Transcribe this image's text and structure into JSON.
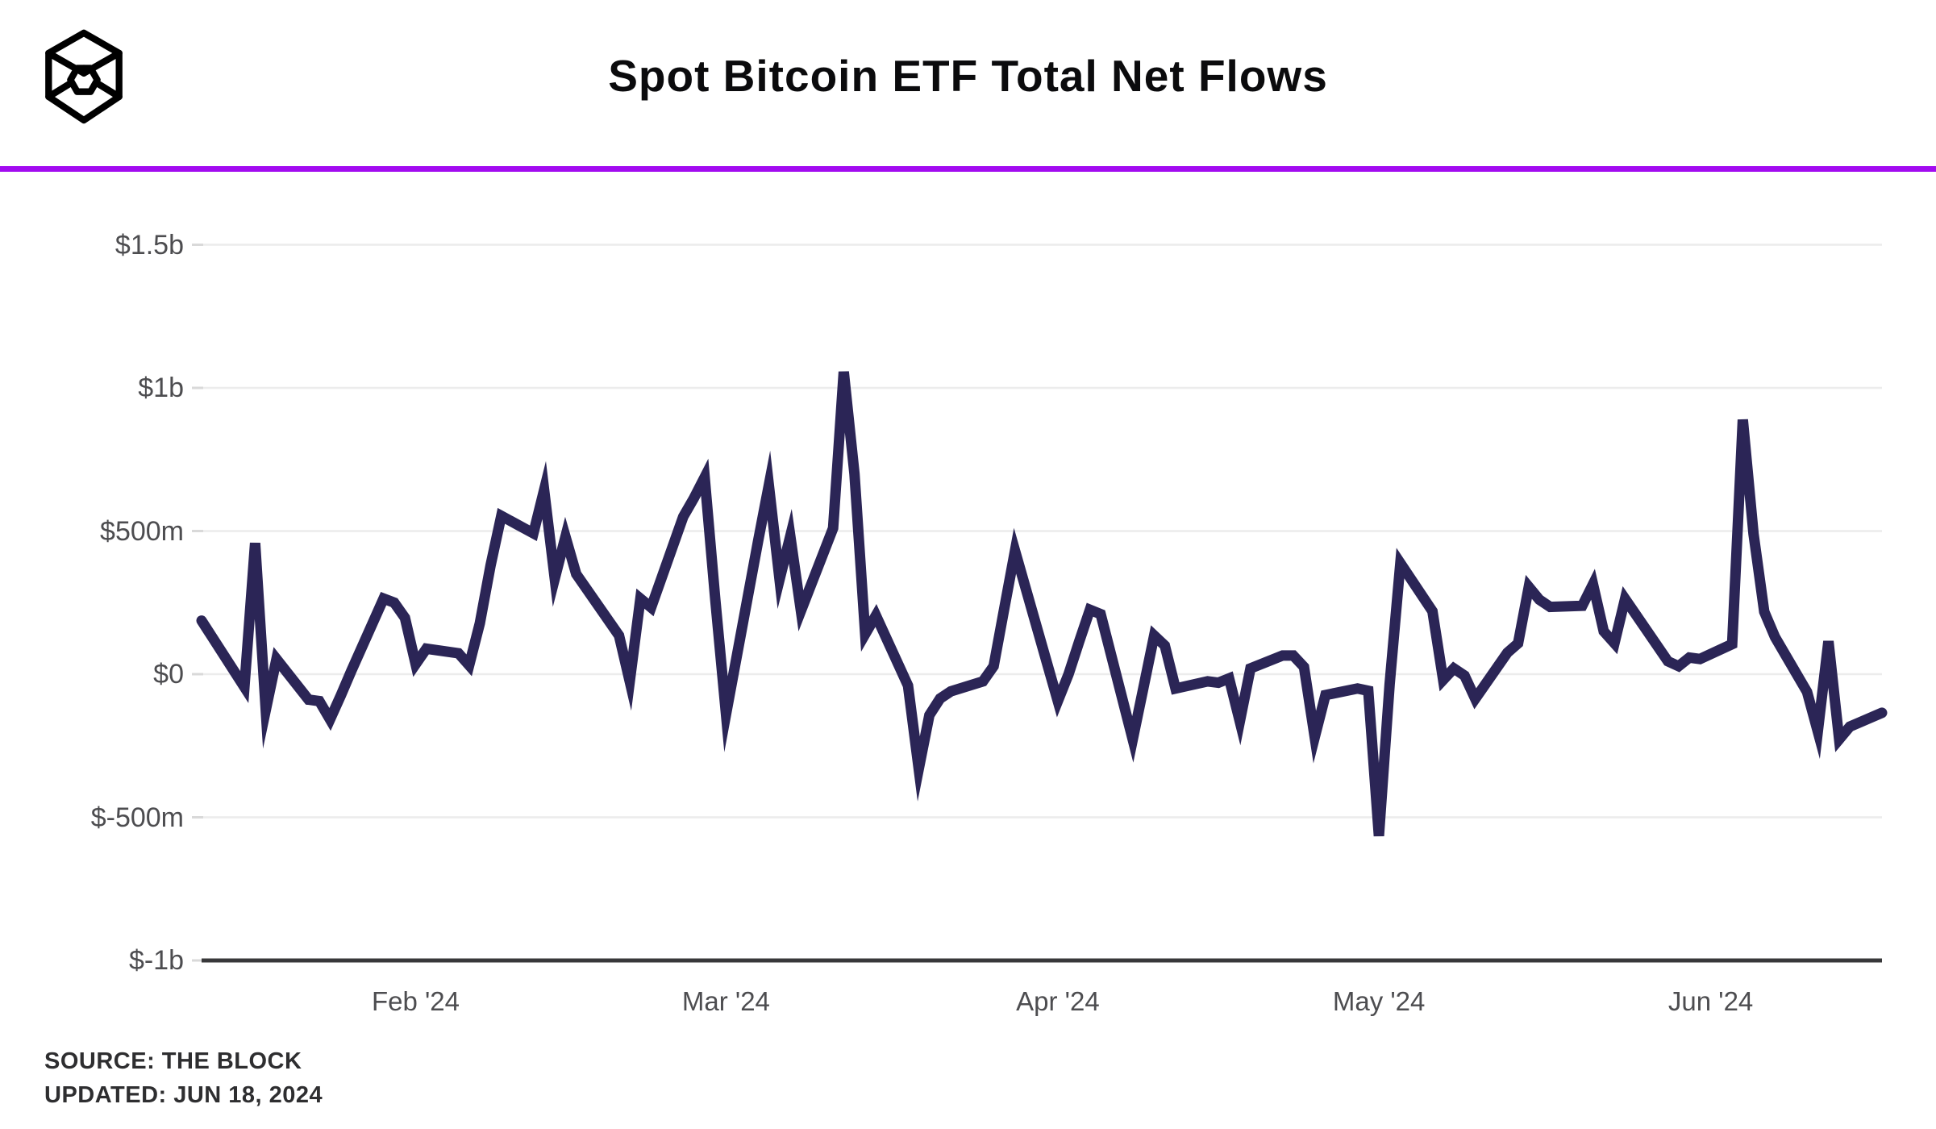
{
  "header": {
    "logo_name": "the-block-cube-logo",
    "title": "Spot Bitcoin ETF Total Net Flows",
    "divider_color": "#a20bf0"
  },
  "footer": {
    "source": "SOURCE: THE BLOCK",
    "updated": "UPDATED: JUN 18, 2024"
  },
  "chart_data": {
    "type": "line",
    "title": "Spot Bitcoin ETF Total Net Flows",
    "unit": "USD millions",
    "line_color": "#2b2556",
    "grid": true,
    "legend": "none",
    "ylim": [
      -1000,
      1500
    ],
    "x_range": {
      "start": "2024-01-12",
      "end": "2024-06-17"
    },
    "y_ticks": [
      {
        "label": "$1.5b",
        "value": 1500
      },
      {
        "label": "$1b",
        "value": 1000
      },
      {
        "label": "$500m",
        "value": 500
      },
      {
        "label": "$0",
        "value": 0
      },
      {
        "label": "$-500m",
        "value": -500
      },
      {
        "label": "$-1b",
        "value": -1000
      }
    ],
    "x_ticks": [
      {
        "label": "Feb '24",
        "date": "2024-02-01"
      },
      {
        "label": "Mar '24",
        "date": "2024-03-01"
      },
      {
        "label": "Apr '24",
        "date": "2024-04-01"
      },
      {
        "label": "May '24",
        "date": "2024-05-01"
      },
      {
        "label": "Jun '24",
        "date": "2024-06-01"
      }
    ],
    "series": [
      {
        "name": "Total Net Flows ($m)",
        "points": [
          {
            "date": "2024-01-12",
            "value": 187
          },
          {
            "date": "2024-01-16",
            "value": -45
          },
          {
            "date": "2024-01-17",
            "value": 458
          },
          {
            "date": "2024-01-18",
            "value": -125
          },
          {
            "date": "2024-01-19",
            "value": 53
          },
          {
            "date": "2024-01-22",
            "value": -89
          },
          {
            "date": "2024-01-23",
            "value": -94
          },
          {
            "date": "2024-01-24",
            "value": -158
          },
          {
            "date": "2024-01-25",
            "value": -75
          },
          {
            "date": "2024-01-26",
            "value": 12
          },
          {
            "date": "2024-01-29",
            "value": 264
          },
          {
            "date": "2024-01-30",
            "value": 250
          },
          {
            "date": "2024-01-31",
            "value": 197
          },
          {
            "date": "2024-02-01",
            "value": 35
          },
          {
            "date": "2024-02-02",
            "value": 89
          },
          {
            "date": "2024-02-05",
            "value": 73
          },
          {
            "date": "2024-02-06",
            "value": 31
          },
          {
            "date": "2024-02-07",
            "value": 178
          },
          {
            "date": "2024-02-08",
            "value": 380
          },
          {
            "date": "2024-02-09",
            "value": 553
          },
          {
            "date": "2024-02-12",
            "value": 492
          },
          {
            "date": "2024-02-13",
            "value": 643
          },
          {
            "date": "2024-02-14",
            "value": 334
          },
          {
            "date": "2024-02-15",
            "value": 480
          },
          {
            "date": "2024-02-16",
            "value": 350
          },
          {
            "date": "2024-02-20",
            "value": 135
          },
          {
            "date": "2024-02-21",
            "value": -25
          },
          {
            "date": "2024-02-22",
            "value": 264
          },
          {
            "date": "2024-02-23",
            "value": 233
          },
          {
            "date": "2024-02-26",
            "value": 550
          },
          {
            "date": "2024-02-27",
            "value": 615
          },
          {
            "date": "2024-02-28",
            "value": 688
          },
          {
            "date": "2024-02-29",
            "value": 260
          },
          {
            "date": "2024-03-01",
            "value": -140
          },
          {
            "date": "2024-03-04",
            "value": 465
          },
          {
            "date": "2024-03-05",
            "value": 660
          },
          {
            "date": "2024-03-06",
            "value": 331
          },
          {
            "date": "2024-03-07",
            "value": 482
          },
          {
            "date": "2024-03-08",
            "value": 221
          },
          {
            "date": "2024-03-11",
            "value": 510
          },
          {
            "date": "2024-03-12",
            "value": 1056
          },
          {
            "date": "2024-03-13",
            "value": 700
          },
          {
            "date": "2024-03-14",
            "value": 140
          },
          {
            "date": "2024-03-15",
            "value": 205
          },
          {
            "date": "2024-03-18",
            "value": -40
          },
          {
            "date": "2024-03-19",
            "value": -331
          },
          {
            "date": "2024-03-20",
            "value": -143
          },
          {
            "date": "2024-03-21",
            "value": -85
          },
          {
            "date": "2024-03-22",
            "value": -60
          },
          {
            "date": "2024-03-25",
            "value": -25
          },
          {
            "date": "2024-03-26",
            "value": 28
          },
          {
            "date": "2024-03-27",
            "value": 230
          },
          {
            "date": "2024-03-28",
            "value": 431
          },
          {
            "date": "2024-04-01",
            "value": -94
          },
          {
            "date": "2024-04-02",
            "value": 0
          },
          {
            "date": "2024-04-03",
            "value": 115
          },
          {
            "date": "2024-04-04",
            "value": 225
          },
          {
            "date": "2024-04-05",
            "value": 210
          },
          {
            "date": "2024-04-08",
            "value": -228
          },
          {
            "date": "2024-04-09",
            "value": -47
          },
          {
            "date": "2024-04-10",
            "value": 135
          },
          {
            "date": "2024-04-11",
            "value": 100
          },
          {
            "date": "2024-04-12",
            "value": -50
          },
          {
            "date": "2024-04-15",
            "value": -25
          },
          {
            "date": "2024-04-16",
            "value": -30
          },
          {
            "date": "2024-04-17",
            "value": -15
          },
          {
            "date": "2024-04-18",
            "value": -165
          },
          {
            "date": "2024-04-19",
            "value": 20
          },
          {
            "date": "2024-04-22",
            "value": 65
          },
          {
            "date": "2024-04-23",
            "value": 65
          },
          {
            "date": "2024-04-24",
            "value": 25
          },
          {
            "date": "2024-04-25",
            "value": -220
          },
          {
            "date": "2024-04-26",
            "value": -73
          },
          {
            "date": "2024-04-29",
            "value": -50
          },
          {
            "date": "2024-04-30",
            "value": -58
          },
          {
            "date": "2024-05-01",
            "value": -565
          },
          {
            "date": "2024-05-02",
            "value": -35
          },
          {
            "date": "2024-05-03",
            "value": 388
          },
          {
            "date": "2024-05-06",
            "value": 220
          },
          {
            "date": "2024-05-07",
            "value": -20
          },
          {
            "date": "2024-05-08",
            "value": 20
          },
          {
            "date": "2024-05-09",
            "value": -5
          },
          {
            "date": "2024-05-10",
            "value": -86
          },
          {
            "date": "2024-05-13",
            "value": 75
          },
          {
            "date": "2024-05-14",
            "value": 108
          },
          {
            "date": "2024-05-15",
            "value": 305
          },
          {
            "date": "2024-05-16",
            "value": 260
          },
          {
            "date": "2024-05-17",
            "value": 235
          },
          {
            "date": "2024-05-20",
            "value": 239
          },
          {
            "date": "2024-05-21",
            "value": 314
          },
          {
            "date": "2024-05-22",
            "value": 150
          },
          {
            "date": "2024-05-23",
            "value": 108
          },
          {
            "date": "2024-05-24",
            "value": 263
          },
          {
            "date": "2024-05-28",
            "value": 45
          },
          {
            "date": "2024-05-29",
            "value": 28
          },
          {
            "date": "2024-05-30",
            "value": 58
          },
          {
            "date": "2024-05-31",
            "value": 53
          },
          {
            "date": "2024-06-03",
            "value": 105
          },
          {
            "date": "2024-06-04",
            "value": 889
          },
          {
            "date": "2024-06-05",
            "value": 490
          },
          {
            "date": "2024-06-06",
            "value": 218
          },
          {
            "date": "2024-06-07",
            "value": 130
          },
          {
            "date": "2024-06-10",
            "value": -62
          },
          {
            "date": "2024-06-11",
            "value": -200
          },
          {
            "date": "2024-06-12",
            "value": 115
          },
          {
            "date": "2024-06-13",
            "value": -228
          },
          {
            "date": "2024-06-14",
            "value": -183
          },
          {
            "date": "2024-06-17",
            "value": -135
          }
        ]
      }
    ],
    "style": {
      "grid_color": "#ececec",
      "axis_color": "#38383a",
      "tick_color": "#d9d9d9",
      "label_color": "#4d4d50",
      "line_width": 13
    }
  }
}
